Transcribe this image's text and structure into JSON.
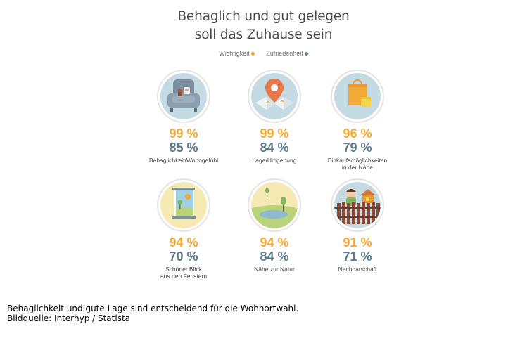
{
  "header": {
    "title_line1": "Behaglich und gut gelegen",
    "title_line2": "soll das Zuhause sein"
  },
  "legend": {
    "importance": "Wichtigkeit",
    "satisfaction": "Zufriedenheit",
    "importance_color": "#f3a935",
    "satisfaction_color": "#5d7a8c"
  },
  "chart_data": {
    "type": "table",
    "columns": [
      "Wichtigkeit",
      "Zufriedenheit"
    ],
    "items": [
      {
        "label": "Behaglichkeit/Wohngefühl",
        "label2": "",
        "importance": "99 %",
        "satisfaction": "85 %",
        "icon": "armchair-icon"
      },
      {
        "label": "Lage/Umgebung",
        "label2": "",
        "importance": "99 %",
        "satisfaction": "84 %",
        "icon": "map-pin-icon"
      },
      {
        "label": "Einkaufsmöglichkeiten",
        "label2": "in der Nähe",
        "importance": "96 %",
        "satisfaction": "79 %",
        "icon": "shopping-bag-icon"
      },
      {
        "label": "Schöner Blick",
        "label2": "aus den Fenstern",
        "importance": "94 %",
        "satisfaction": "70 %",
        "icon": "window-view-icon"
      },
      {
        "label": "Nähe zur Natur",
        "label2": "",
        "importance": "94 %",
        "satisfaction": "84 %",
        "icon": "nature-pond-icon"
      },
      {
        "label": "Nachbarschaft",
        "label2": "",
        "importance": "91 %",
        "satisfaction": "71 %",
        "icon": "neighbor-fence-icon"
      }
    ]
  },
  "caption": {
    "line1": "Behaglichkeit und gute Lage sind entscheidend für die Wohnortwahl.",
    "line2": "Bildquelle: Interhyp / Statista"
  }
}
